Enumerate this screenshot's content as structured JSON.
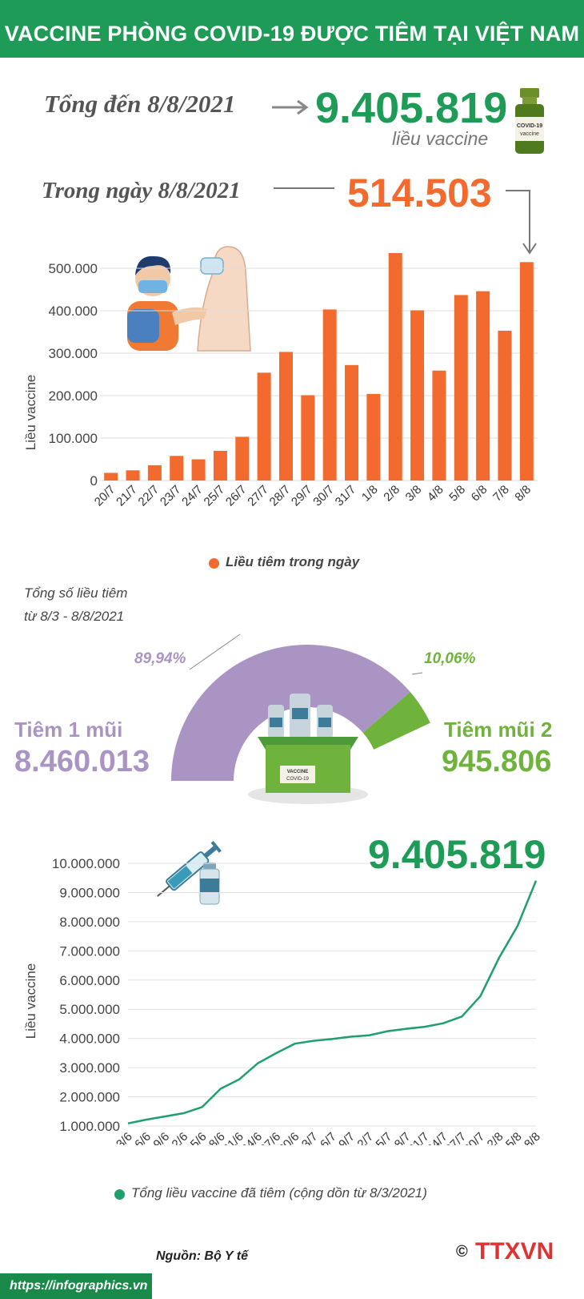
{
  "header": {
    "title": "VACCINE PHÒNG COVID-19 ĐƯỢC TIÊM TẠI VIỆT NAM"
  },
  "summary": {
    "total_label": "Tổng đến 8/8/2021",
    "total_value": "9.405.819",
    "total_unit": "liều vaccine",
    "daily_label": "Trong ngày 8/8/2021",
    "daily_value": "514.503",
    "vial_text": "COVID-19 vaccine"
  },
  "colors": {
    "green": "#1e9c57",
    "orange": "#f26a2e",
    "purple": "#a994c4",
    "light_green": "#6fb33d",
    "teal": "#1f9f6e"
  },
  "chart_data": [
    {
      "type": "bar",
      "ylabel": "Liều vaccine",
      "ylim": [
        0,
        500000
      ],
      "yticks": [
        0,
        100000,
        200000,
        300000,
        400000,
        500000
      ],
      "ytick_labels": [
        "0",
        "100.000",
        "200.000",
        "300.000",
        "400.000",
        "500.000"
      ],
      "categories": [
        "20/7",
        "21/7",
        "22/7",
        "23/7",
        "24/7",
        "25/7",
        "26/7",
        "27/7",
        "28/7",
        "29/7",
        "30/7",
        "31/7",
        "1/8",
        "2/8",
        "3/8",
        "4/8",
        "5/8",
        "6/8",
        "7/8",
        "8/8"
      ],
      "series": [
        {
          "name": "Liều tiêm trong ngày",
          "values": [
            18000,
            24000,
            36000,
            58000,
            50000,
            70000,
            103000,
            254000,
            303000,
            201000,
            403000,
            272000,
            204000,
            536000,
            401000,
            259000,
            437000,
            446000,
            353000,
            514503
          ]
        }
      ],
      "legend": "bottom-center",
      "grid": true
    },
    {
      "type": "pie",
      "title": "Tổng số liều tiêm từ 8/3 - 8/8/2021",
      "slices": [
        {
          "name": "Tiêm 1 mũi",
          "value": 8460013,
          "percent_label": "89,94%",
          "color": "#a994c4"
        },
        {
          "name": "Tiêm mũi 2",
          "value": 945806,
          "percent_label": "10,06%",
          "color": "#6fb33d"
        }
      ],
      "value_labels": [
        "8.460.013",
        "945.806"
      ]
    },
    {
      "type": "line",
      "ylabel": "Liều vaccine",
      "ylim": [
        1000000,
        10000000
      ],
      "yticks": [
        1000000,
        2000000,
        3000000,
        4000000,
        5000000,
        6000000,
        7000000,
        8000000,
        9000000,
        10000000
      ],
      "ytick_labels": [
        "1.000.000",
        "2.000.000",
        "3.000.000",
        "4.000.000",
        "5.000.000",
        "6.000.000",
        "7.000.000",
        "8.000.000",
        "9.000.000",
        "10.000.000"
      ],
      "x": [
        "3/6",
        "6/6",
        "9/6",
        "12/6",
        "15/6",
        "18/6",
        "21/6",
        "24/6",
        "27/6",
        "30/6",
        "3/7",
        "6/7",
        "9/7",
        "12/7",
        "15/7",
        "18/7",
        "21/7",
        "24/7",
        "27/7",
        "30/7",
        "2/8",
        "5/8",
        "8/8"
      ],
      "series": [
        {
          "name": "Tổng liều vaccine đã tiêm (cộng dồn từ 8/3/2021)",
          "values": [
            1090000,
            1220000,
            1330000,
            1440000,
            1650000,
            2280000,
            2600000,
            3150000,
            3500000,
            3820000,
            3920000,
            3980000,
            4060000,
            4110000,
            4250000,
            4330000,
            4400000,
            4520000,
            4750000,
            5450000,
            6750000,
            7850000,
            9405819
          ]
        }
      ],
      "end_label": "9.405.819",
      "legend": "bottom-center",
      "grid": true
    }
  ],
  "donut": {
    "title_line1": "Tổng số liều tiêm",
    "title_line2": "từ 8/3 - 8/8/2021",
    "dose1_label": "Tiêm 1 mũi",
    "dose1_value": "8.460.013",
    "dose1_pct": "89,94%",
    "dose2_label": "Tiêm mũi 2",
    "dose2_value": "945.806",
    "dose2_pct": "10,06%",
    "box_text1": "VACCINE",
    "box_text2": "COVID-19"
  },
  "footer": {
    "source": "Nguồn: Bộ Y tế",
    "url": "https://infographics.vn",
    "copyright": "©",
    "logo": "TTXVN"
  }
}
